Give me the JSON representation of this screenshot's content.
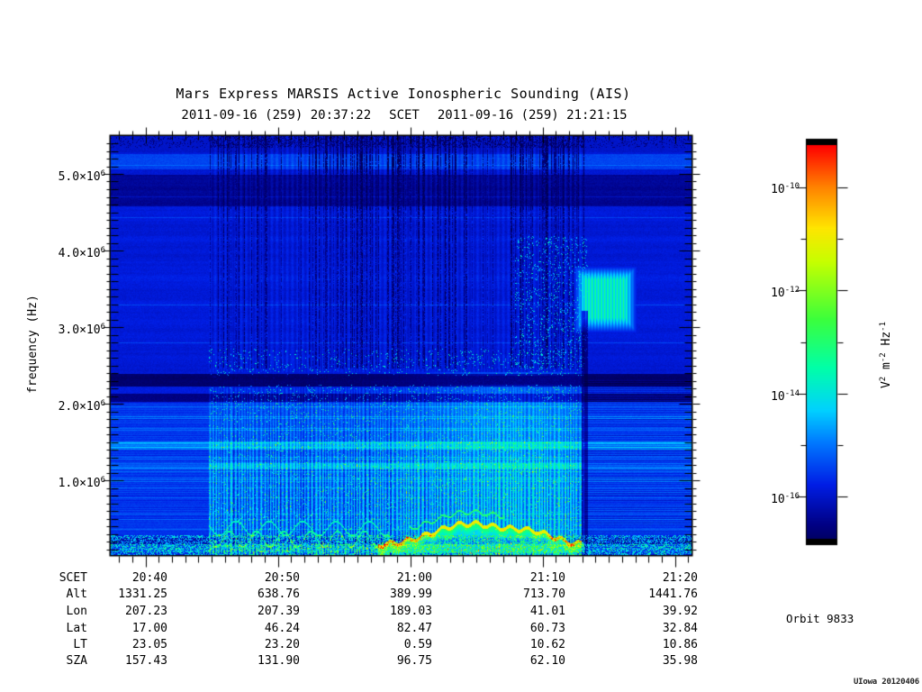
{
  "header": {
    "title": "Mars Express MARSIS Active Ionospheric Sounding (AIS)",
    "time_start": "2011-09-16 (259) 20:37:22",
    "scet_label": "SCET",
    "time_end": "2011-09-16 (259) 21:21:15"
  },
  "y_axis": {
    "label": "frequency (Hz)",
    "ticks": [
      {
        "base": "5.0×10",
        "exp": "6"
      },
      {
        "base": "4.0×10",
        "exp": "6"
      },
      {
        "base": "3.0×10",
        "exp": "6"
      },
      {
        "base": "2.0×10",
        "exp": "6"
      },
      {
        "base": "1.0×10",
        "exp": "6"
      }
    ]
  },
  "colorbar": {
    "ticks": [
      {
        "base": "10",
        "exp": "-10"
      },
      {
        "base": "10",
        "exp": "-12"
      },
      {
        "base": "10",
        "exp": "-14"
      },
      {
        "base": "10",
        "exp": "-16"
      }
    ],
    "unit": {
      "v": "V",
      "v_exp": "2",
      "m": " m",
      "m_exp": "-2",
      "hz": " Hz",
      "hz_exp": "-1"
    }
  },
  "table": {
    "rows": [
      {
        "label": "SCET",
        "values": [
          "20:40",
          "20:50",
          "21:00",
          "21:10",
          "21:20"
        ]
      },
      {
        "label": "Alt",
        "values": [
          "1331.25",
          "638.76",
          "389.99",
          "713.70",
          "1441.76"
        ]
      },
      {
        "label": "Lon",
        "values": [
          "207.23",
          "207.39",
          "189.03",
          "41.01",
          "39.92"
        ]
      },
      {
        "label": "Lat",
        "values": [
          "17.00",
          "46.24",
          "82.47",
          "60.73",
          "32.84"
        ]
      },
      {
        "label": "LT",
        "values": [
          "23.05",
          "23.20",
          "0.59",
          "10.62",
          "10.86"
        ]
      },
      {
        "label": "SZA",
        "values": [
          "157.43",
          "131.90",
          "96.75",
          "62.10",
          "35.98"
        ]
      }
    ]
  },
  "footer": {
    "orbit": "Orbit 9833",
    "credit": "UIowa 20120406"
  },
  "chart_data": {
    "type": "heatmap",
    "title": "Mars Express MARSIS Active Ionospheric Sounding (AIS)",
    "xlabel": "SCET",
    "ylabel": "frequency (Hz)",
    "date": "2011-09-16 (259)",
    "x_range": [
      "20:37:22",
      "21:21:15"
    ],
    "x_ticks": [
      "20:40",
      "20:50",
      "21:00",
      "21:10",
      "21:20"
    ],
    "ylim_hz": [
      100000,
      5500000
    ],
    "y_ticks_hz": [
      1000000,
      2000000,
      3000000,
      4000000,
      5000000
    ],
    "colorbar": {
      "scale": "log",
      "unit": "V^2 m^-2 Hz^-1",
      "tick_values": [
        "1e-10",
        "1e-12",
        "1e-14",
        "1e-16"
      ],
      "colors_top_to_bottom": [
        "#ff0000",
        "#ff8000",
        "#ffff00",
        "#40ff40",
        "#00ffaa",
        "#00d0ff",
        "#0030e0",
        "#000080"
      ]
    },
    "orbit": 9833,
    "ephemeris": {
      "headers": [
        "SCET",
        "Alt",
        "Lon",
        "Lat",
        "LT",
        "SZA"
      ],
      "columns": [
        [
          "20:40",
          1331.25,
          207.23,
          17.0,
          23.05,
          157.43
        ],
        [
          "20:50",
          638.76,
          207.39,
          46.24,
          23.2,
          131.9
        ],
        [
          "21:00",
          389.99,
          189.03,
          82.47,
          0.59,
          96.75
        ],
        [
          "21:10",
          713.7,
          41.01,
          60.73,
          10.62,
          62.1
        ],
        [
          "21:20",
          1441.76,
          39.92,
          32.84,
          10.86,
          35.98
        ]
      ]
    },
    "features": [
      "active sounding interval ~20:45-21:13 with dense vertical stripe echoes below ~2.8 MHz",
      "strong near-black horizontal absorption band at ~2.3 MHz across full plot",
      "dark band near 4.6-5.0 MHz and black vertical dropout streaks above 2.8 MHz during sounding",
      "bright yellow-green ionospheric echo trace arcing near periapsis ~20:57-21:12 at bottom",
      "cyan striped patch near 3.0-3.7 MHz around 21:12-21:16",
      "fine horizontal banded blue background before/after sounding"
    ]
  }
}
